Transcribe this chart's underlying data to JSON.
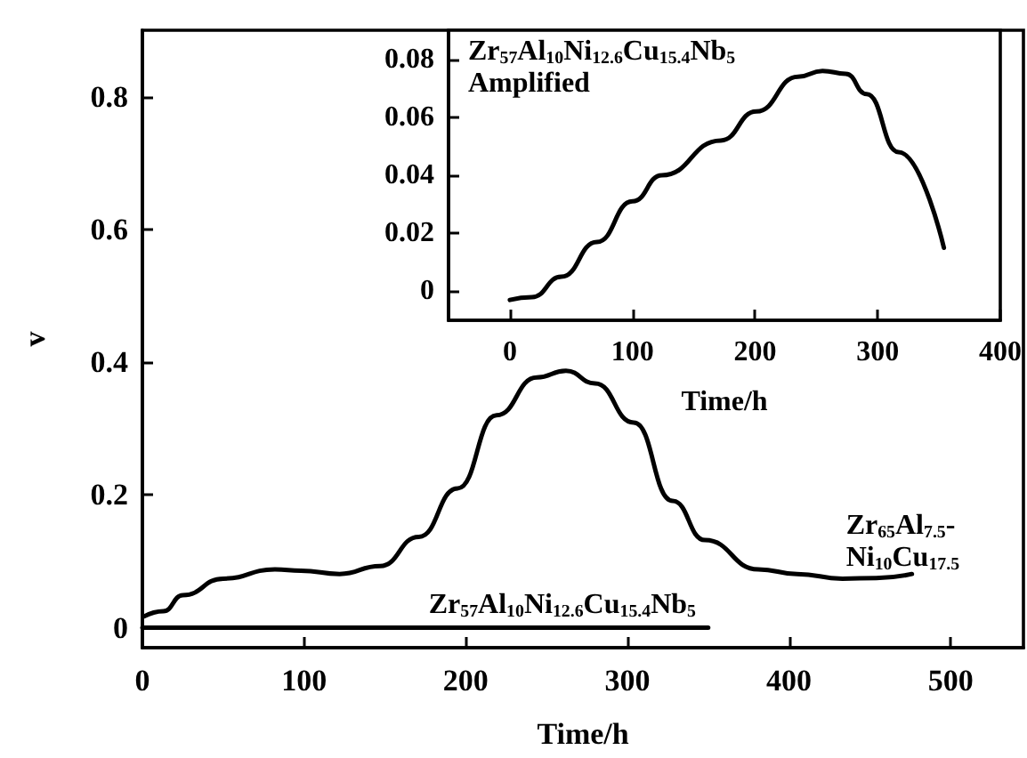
{
  "chart_data": [
    {
      "type": "line",
      "xlabel": "Time/h",
      "ylabel": "v",
      "xlim": [
        0,
        545
      ],
      "ylim": [
        -0.03,
        0.9
      ],
      "xticks": [
        0,
        100,
        200,
        300,
        400,
        500
      ],
      "yticks": [
        0,
        0.2,
        0.4,
        0.6,
        0.8
      ],
      "grid": false,
      "legend": false,
      "marker": "none",
      "line_style": "solid",
      "series": [
        {
          "name": "Zr$_{65}$Al$_{7.5}$-\nNi$_{10}$Cu$_{17.5}$",
          "color": "#000000",
          "x": [
            1,
            13,
            25,
            50,
            82,
            98,
            122,
            147,
            171,
            195,
            219,
            244,
            262,
            280,
            304,
            328,
            348,
            381,
            405,
            433,
            454,
            476
          ],
          "values": [
            0.017,
            0.025,
            0.049,
            0.074,
            0.088,
            0.086,
            0.081,
            0.093,
            0.137,
            0.21,
            0.32,
            0.377,
            0.387,
            0.368,
            0.309,
            0.191,
            0.132,
            0.088,
            0.081,
            0.074,
            0.075,
            0.081
          ]
        },
        {
          "name": "Zr$_{57}$Al$_{10}$Ni$_{12.6}$Cu$_{15.4}$Nb$_{5}$",
          "color": "#000000",
          "x": [
            0,
            100,
            200,
            300,
            350
          ],
          "values": [
            0,
            0,
            0,
            0,
            0
          ]
        }
      ]
    },
    {
      "type": "line",
      "title": "Zr$_{57}$Al$_{10}$Ni$_{12.6}$Cu$_{15.4}$Nb$_{5}$\nAmplified",
      "xlabel": "Time/h",
      "xlim": [
        -50,
        400
      ],
      "ylim": [
        -0.01,
        0.09
      ],
      "xticks": [
        0,
        100,
        200,
        300,
        400
      ],
      "yticks": [
        0,
        0.02,
        0.04,
        0.06,
        0.08
      ],
      "grid": false,
      "legend": false,
      "marker": "none",
      "line_style": "solid",
      "series": [
        {
          "color": "#000000",
          "x": [
            0,
            18,
            42,
            71,
            100,
            124,
            172,
            201,
            235,
            255,
            274,
            291,
            317,
            354
          ],
          "values": [
            -0.003,
            -0.002,
            0.005,
            0.017,
            0.031,
            0.04,
            0.052,
            0.062,
            0.074,
            0.076,
            0.075,
            0.068,
            0.048,
            0.015
          ]
        }
      ]
    }
  ]
}
